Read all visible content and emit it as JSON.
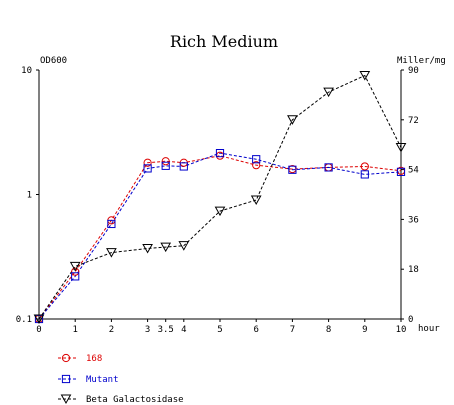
{
  "chart_data": {
    "type": "line",
    "title": "Rich Medium",
    "xlabel": "hour",
    "y_left_label": "OD600",
    "y_right_label": "Miller/mg",
    "x_ticks": [
      {
        "value": 0,
        "label": "0"
      },
      {
        "value": 1,
        "label": "1"
      },
      {
        "value": 2,
        "label": "2"
      },
      {
        "value": 3,
        "label": "3"
      },
      {
        "value": 3.5,
        "label": "3.5"
      },
      {
        "value": 4,
        "label": "4"
      },
      {
        "value": 5,
        "label": "5"
      },
      {
        "value": 6,
        "label": "6"
      },
      {
        "value": 7,
        "label": "7"
      },
      {
        "value": 8,
        "label": "8"
      },
      {
        "value": 9,
        "label": "9"
      },
      {
        "value": 10,
        "label": "10"
      }
    ],
    "xlim": [
      0,
      10
    ],
    "y_left": {
      "scale": "log",
      "ylim": [
        0.1,
        10
      ],
      "ticks": [
        {
          "value": 0.1,
          "label": "0.1"
        },
        {
          "value": 1,
          "label": "1"
        },
        {
          "value": 10,
          "label": "10"
        }
      ]
    },
    "y_right": {
      "scale": "linear",
      "ylim": [
        0,
        90
      ],
      "ticks": [
        {
          "value": 0,
          "label": "0"
        },
        {
          "value": 18,
          "label": "18"
        },
        {
          "value": 36,
          "label": "36"
        },
        {
          "value": 54,
          "label": "54"
        },
        {
          "value": 72,
          "label": "72"
        },
        {
          "value": 90,
          "label": "90"
        }
      ]
    },
    "series": [
      {
        "name": "168",
        "axis": "left",
        "marker": "circle",
        "color": "#dd0000",
        "x": [
          0,
          1,
          2,
          3,
          3.5,
          4,
          5,
          6,
          7,
          8,
          9,
          10
        ],
        "y": [
          0.1,
          0.24,
          0.62,
          1.8,
          1.85,
          1.8,
          2.05,
          1.72,
          1.6,
          1.65,
          1.68,
          1.55
        ]
      },
      {
        "name": "Mutant",
        "axis": "left",
        "marker": "square",
        "color": "#0000cc",
        "x": [
          0,
          1,
          2,
          3,
          3.5,
          4,
          5,
          6,
          7,
          8,
          9,
          10
        ],
        "y": [
          0.1,
          0.22,
          0.58,
          1.62,
          1.7,
          1.68,
          2.15,
          1.92,
          1.58,
          1.65,
          1.45,
          1.52
        ]
      },
      {
        "name": "Beta Galactosidase",
        "axis": "right",
        "marker": "triangle-down",
        "color": "#000000",
        "x": [
          0,
          1,
          2,
          3,
          3.5,
          4,
          5,
          6,
          7,
          8,
          9,
          10
        ],
        "y": [
          0,
          19,
          24,
          25.5,
          26,
          26.5,
          39,
          43,
          72,
          82,
          88,
          62
        ]
      }
    ],
    "legend_position": "bottom-left",
    "grid": false
  }
}
